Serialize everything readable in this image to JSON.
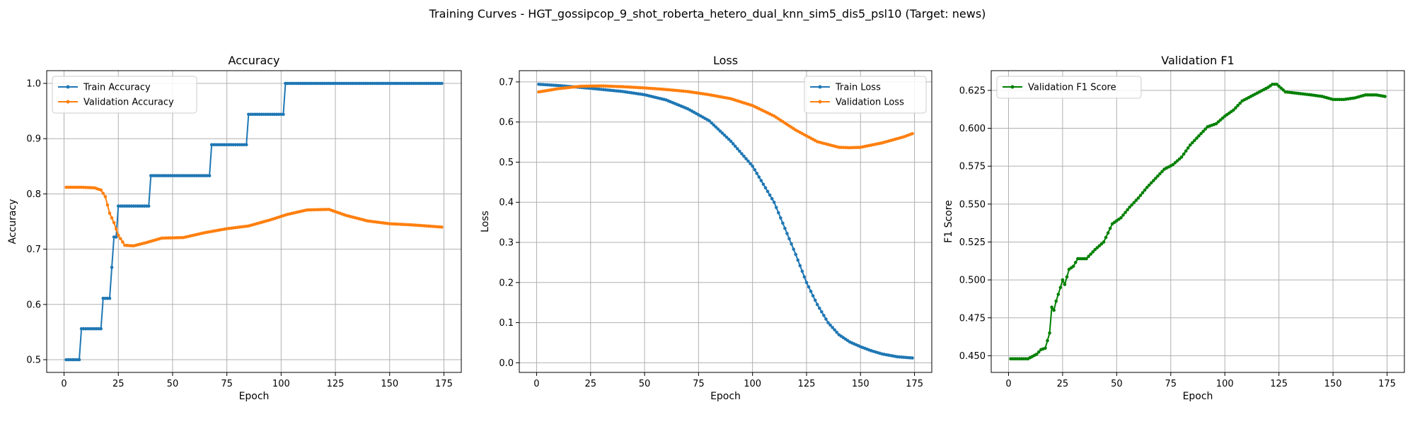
{
  "suptitle": "Training Curves - HGT_gossipcop_9_shot_roberta_hetero_dual_knn_sim5_dis5_psl10 (Target: news)",
  "colors": {
    "train": "#1f77b4",
    "validation": "#ff7f0e",
    "f1": "#008000",
    "grid": "#b0b0b0"
  },
  "chart_data": [
    {
      "type": "line",
      "title": "Accuracy",
      "xlabel": "Epoch",
      "ylabel": "Accuracy",
      "xlim": [
        -8,
        183
      ],
      "ylim": [
        0.477,
        1.023
      ],
      "xticks": [
        0,
        25,
        50,
        75,
        100,
        125,
        150,
        175
      ],
      "yticks": [
        0.5,
        0.6,
        0.7,
        0.8,
        0.9,
        1.0
      ],
      "ytick_decimals": 1,
      "grid": true,
      "legend_position": "upper-left",
      "series": [
        {
          "name": "Train Accuracy",
          "color": "#1f77b4",
          "keypoints": [
            [
              1,
              0.5
            ],
            [
              7,
              0.5
            ],
            [
              8,
              0.556
            ],
            [
              17,
              0.556
            ],
            [
              18,
              0.611
            ],
            [
              21,
              0.611
            ],
            [
              22,
              0.667
            ],
            [
              23,
              0.722
            ],
            [
              25,
              0.778
            ],
            [
              39,
              0.778
            ],
            [
              40,
              0.833
            ],
            [
              67,
              0.833
            ],
            [
              68,
              0.889
            ],
            [
              84,
              0.889
            ],
            [
              85,
              0.944
            ],
            [
              101,
              0.944
            ],
            [
              102,
              1.0
            ],
            [
              174,
              1.0
            ]
          ],
          "step": true
        },
        {
          "name": "Validation Accuracy",
          "color": "#ff7f0e",
          "keypoints": [
            [
              1,
              0.812
            ],
            [
              8,
              0.812
            ],
            [
              14,
              0.811
            ],
            [
              17,
              0.807
            ],
            [
              19,
              0.795
            ],
            [
              21,
              0.765
            ],
            [
              23,
              0.748
            ],
            [
              25,
              0.725
            ],
            [
              28,
              0.707
            ],
            [
              32,
              0.706
            ],
            [
              38,
              0.712
            ],
            [
              45,
              0.72
            ],
            [
              55,
              0.721
            ],
            [
              65,
              0.73
            ],
            [
              75,
              0.737
            ],
            [
              85,
              0.742
            ],
            [
              95,
              0.753
            ],
            [
              103,
              0.763
            ],
            [
              112,
              0.771
            ],
            [
              122,
              0.772
            ],
            [
              130,
              0.761
            ],
            [
              140,
              0.751
            ],
            [
              150,
              0.746
            ],
            [
              160,
              0.744
            ],
            [
              174,
              0.74
            ]
          ],
          "step": false
        }
      ]
    },
    {
      "type": "line",
      "title": "Loss",
      "xlabel": "Epoch",
      "ylabel": "Loss",
      "xlim": [
        -8,
        183
      ],
      "ylim": [
        -0.024,
        0.728
      ],
      "xticks": [
        0,
        25,
        50,
        75,
        100,
        125,
        150,
        175
      ],
      "yticks": [
        0.0,
        0.1,
        0.2,
        0.3,
        0.4,
        0.5,
        0.6,
        0.7
      ],
      "ytick_decimals": 1,
      "grid": true,
      "legend_position": "upper-right",
      "series": [
        {
          "name": "Train Loss",
          "color": "#1f77b4",
          "keypoints": [
            [
              1,
              0.694
            ],
            [
              10,
              0.691
            ],
            [
              25,
              0.684
            ],
            [
              40,
              0.676
            ],
            [
              50,
              0.668
            ],
            [
              60,
              0.655
            ],
            [
              70,
              0.633
            ],
            [
              80,
              0.603
            ],
            [
              90,
              0.552
            ],
            [
              100,
              0.49
            ],
            [
              110,
              0.4
            ],
            [
              120,
              0.27
            ],
            [
              125,
              0.2
            ],
            [
              130,
              0.145
            ],
            [
              135,
              0.1
            ],
            [
              140,
              0.07
            ],
            [
              145,
              0.052
            ],
            [
              150,
              0.04
            ],
            [
              155,
              0.03
            ],
            [
              160,
              0.022
            ],
            [
              167,
              0.015
            ],
            [
              174,
              0.012
            ]
          ],
          "step": false
        },
        {
          "name": "Validation Loss",
          "color": "#ff7f0e",
          "keypoints": [
            [
              1,
              0.675
            ],
            [
              10,
              0.683
            ],
            [
              20,
              0.689
            ],
            [
              30,
              0.69
            ],
            [
              40,
              0.688
            ],
            [
              50,
              0.685
            ],
            [
              60,
              0.681
            ],
            [
              70,
              0.676
            ],
            [
              80,
              0.668
            ],
            [
              90,
              0.658
            ],
            [
              100,
              0.641
            ],
            [
              110,
              0.615
            ],
            [
              120,
              0.58
            ],
            [
              130,
              0.551
            ],
            [
              140,
              0.537
            ],
            [
              145,
              0.536
            ],
            [
              150,
              0.537
            ],
            [
              160,
              0.548
            ],
            [
              170,
              0.563
            ],
            [
              174,
              0.571
            ]
          ],
          "step": false
        }
      ]
    },
    {
      "type": "line",
      "title": "Validation F1",
      "xlabel": "Epoch",
      "ylabel": "F1 Score",
      "xlim": [
        -8,
        183
      ],
      "ylim": [
        0.439,
        0.638
      ],
      "xticks": [
        0,
        25,
        50,
        75,
        100,
        125,
        150,
        175
      ],
      "yticks": [
        0.45,
        0.475,
        0.5,
        0.525,
        0.55,
        0.575,
        0.6,
        0.625
      ],
      "ytick_decimals": 3,
      "grid": true,
      "legend_position": "upper-left",
      "series": [
        {
          "name": "Validation F1 Score",
          "color": "#008000",
          "keypoints": [
            [
              1,
              0.448
            ],
            [
              5,
              0.448
            ],
            [
              9,
              0.448
            ],
            [
              13,
              0.451
            ],
            [
              15,
              0.454
            ],
            [
              17,
              0.455
            ],
            [
              18,
              0.46
            ],
            [
              19,
              0.465
            ],
            [
              20,
              0.482
            ],
            [
              21,
              0.48
            ],
            [
              22,
              0.486
            ],
            [
              24,
              0.495
            ],
            [
              25,
              0.5
            ],
            [
              26,
              0.497
            ],
            [
              28,
              0.507
            ],
            [
              30,
              0.509
            ],
            [
              32,
              0.514
            ],
            [
              36,
              0.514
            ],
            [
              40,
              0.52
            ],
            [
              44,
              0.525
            ],
            [
              48,
              0.537
            ],
            [
              52,
              0.541
            ],
            [
              56,
              0.548
            ],
            [
              60,
              0.554
            ],
            [
              64,
              0.561
            ],
            [
              68,
              0.567
            ],
            [
              72,
              0.573
            ],
            [
              76,
              0.576
            ],
            [
              80,
              0.581
            ],
            [
              84,
              0.589
            ],
            [
              88,
              0.595
            ],
            [
              92,
              0.601
            ],
            [
              96,
              0.603
            ],
            [
              100,
              0.608
            ],
            [
              104,
              0.612
            ],
            [
              108,
              0.618
            ],
            [
              112,
              0.621
            ],
            [
              116,
              0.624
            ],
            [
              120,
              0.627
            ],
            [
              122,
              0.629
            ],
            [
              124,
              0.629
            ],
            [
              128,
              0.624
            ],
            [
              134,
              0.623
            ],
            [
              140,
              0.622
            ],
            [
              145,
              0.621
            ],
            [
              150,
              0.619
            ],
            [
              155,
              0.619
            ],
            [
              160,
              0.62
            ],
            [
              165,
              0.622
            ],
            [
              170,
              0.622
            ],
            [
              174,
              0.621
            ]
          ],
          "step": false
        }
      ]
    }
  ]
}
